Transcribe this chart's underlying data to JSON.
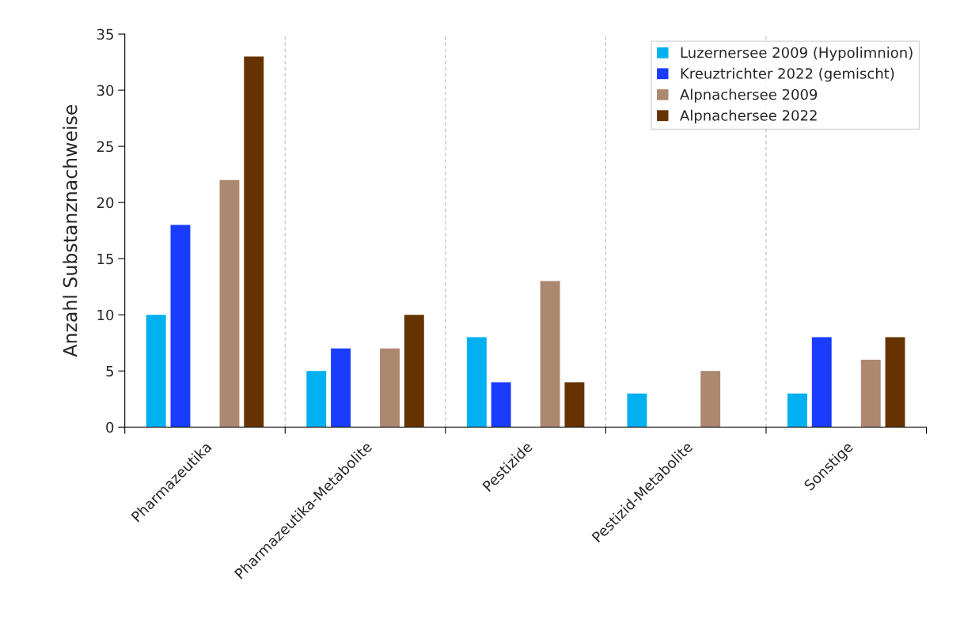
{
  "chart_data": {
    "type": "bar",
    "ylabel": "Anzahl Substanznachweise",
    "categories": [
      "Pharmazeutika",
      "Pharmazeutika-Metabolite",
      "Pestizide",
      "Pestizid-Metabolite",
      "Sonstige"
    ],
    "series": [
      {
        "name": "Luzernersee 2009 (Hypolimnion)",
        "color": "#00b0f0",
        "values": [
          10,
          5,
          8,
          3,
          3
        ]
      },
      {
        "name": "Kreuztrichter 2022 (gemischt)",
        "color": "#1a3cff",
        "values": [
          18,
          7,
          4,
          null,
          8
        ]
      },
      {
        "name": "Alpnachersee 2009",
        "color": "#ad8870",
        "values": [
          22,
          7,
          13,
          5,
          6
        ]
      },
      {
        "name": "Alpnachersee 2022",
        "color": "#663300",
        "values": [
          33,
          10,
          4,
          null,
          8
        ]
      }
    ],
    "ylim": [
      0,
      35
    ],
    "yticks": [
      0,
      5,
      10,
      15,
      20,
      25,
      30,
      35
    ],
    "grid": "x",
    "legend": "top right"
  }
}
